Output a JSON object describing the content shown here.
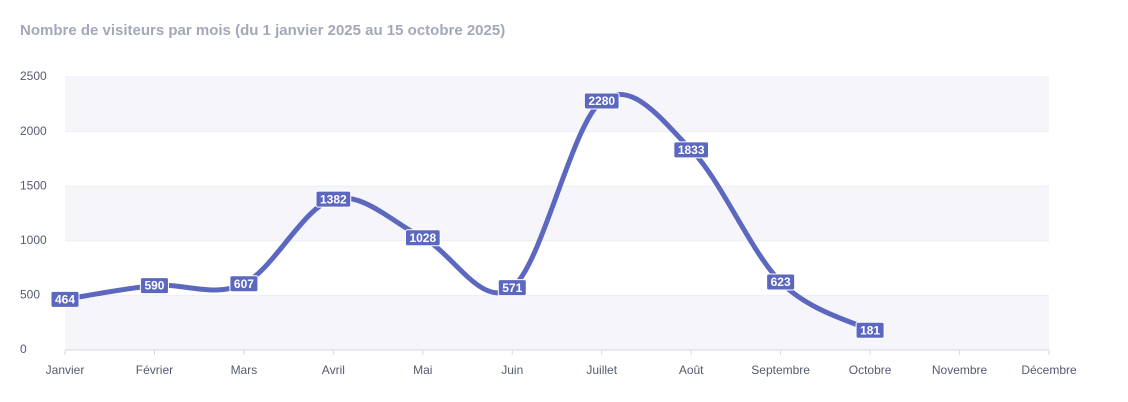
{
  "chart_data": {
    "type": "line",
    "title": "Nombre de visiteurs par mois (du 1 janvier 2025 au 15 octobre 2025)",
    "categories": [
      "Janvier",
      "Février",
      "Mars",
      "Avril",
      "Mai",
      "Juin",
      "Juillet",
      "Août",
      "Septembre",
      "Octobre",
      "Novembre",
      "Décembre"
    ],
    "values": [
      464,
      590,
      607,
      1382,
      1028,
      571,
      2280,
      1833,
      623,
      181,
      null,
      null
    ],
    "color": "#5c67c0",
    "ylim": [
      0,
      2500
    ],
    "yticks": [
      0,
      500,
      1000,
      1500,
      2000,
      2500
    ],
    "smooth": true,
    "data_labels": true
  }
}
